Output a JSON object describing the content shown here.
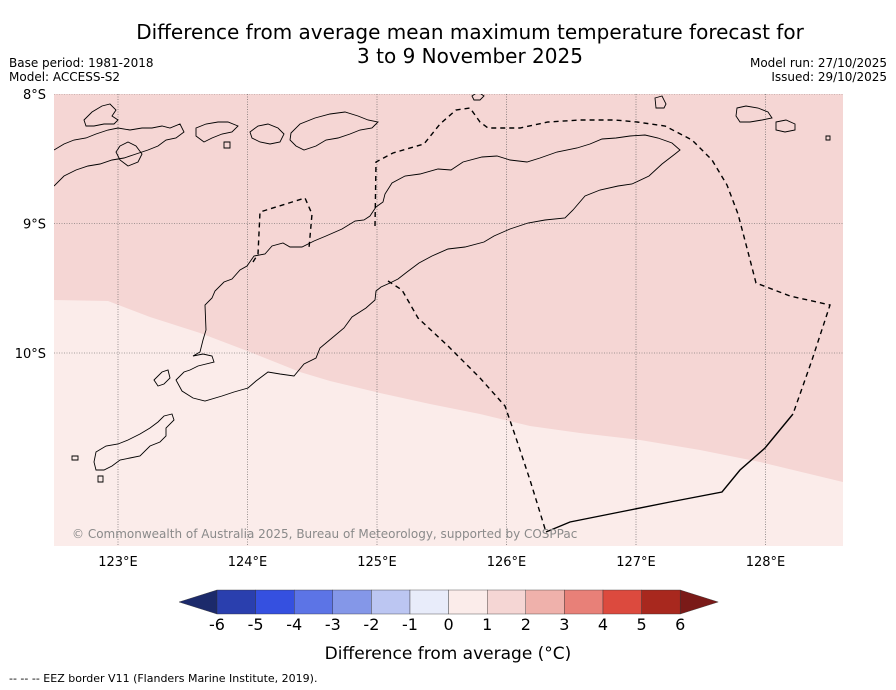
{
  "header": {
    "title_line1": "Difference from average mean maximum temperature forecast for",
    "title_line2": "3 to 9 November 2025",
    "base_period": "Base period: 1981-2018",
    "model": "Model: ACCESS-S2",
    "model_run": "Model run: 27/10/2025",
    "issued": "Issued: 29/10/2025"
  },
  "chart_data": {
    "type": "heatmap",
    "title": "Difference from average mean maximum temperature forecast for 3 to 9 November 2025",
    "lat_range": [
      -11.5,
      -8.0
    ],
    "lon_range": [
      122.5,
      128.6
    ],
    "lat_ticks": [
      {
        "value": -8,
        "label": "8°S"
      },
      {
        "value": -9,
        "label": "9°S"
      },
      {
        "value": -10,
        "label": "10°S"
      }
    ],
    "lon_ticks": [
      {
        "value": 123,
        "label": "123°E"
      },
      {
        "value": 124,
        "label": "124°E"
      },
      {
        "value": 125,
        "label": "125°E"
      },
      {
        "value": 126,
        "label": "126°E"
      },
      {
        "value": 127,
        "label": "127°E"
      },
      {
        "value": 128,
        "label": "128°E"
      }
    ],
    "zones": [
      {
        "name": "north",
        "range": "1 to 2",
        "color": "#f5d6d4"
      },
      {
        "name": "south",
        "range": "0 to 1",
        "color": "#fbecea"
      }
    ],
    "colorbar": {
      "label": "Difference from average (°C)",
      "ticks": [
        -6,
        -5,
        -4,
        -3,
        -2,
        -1,
        0,
        1,
        2,
        3,
        4,
        5,
        6
      ],
      "tick_labels": [
        "-6",
        "-5",
        "-4",
        "-3",
        "-2",
        "-1",
        "0",
        "1",
        "2",
        "3",
        "4",
        "5",
        "6"
      ],
      "under_color": "#1c2a6b",
      "over_color": "#7a1a18",
      "colors": [
        "#2a3fae",
        "#3550e0",
        "#5c74e6",
        "#8497e8",
        "#bcc6f2",
        "#e8ecfa",
        "#fbecea",
        "#f5d6d4",
        "#efb1ab",
        "#e88078",
        "#dc4a3e",
        "#a8281e"
      ]
    }
  },
  "map": {
    "copyright": "© Commonwealth of Australia 2025, Bureau of Meteorology, supported by COSPPac",
    "colors": {
      "coast": "#000000",
      "eez": "#000000",
      "grid": "#555555"
    }
  },
  "footer": {
    "legend": "--  --  -- EEZ border V11 (Flanders Marine Institute, 2019)."
  }
}
